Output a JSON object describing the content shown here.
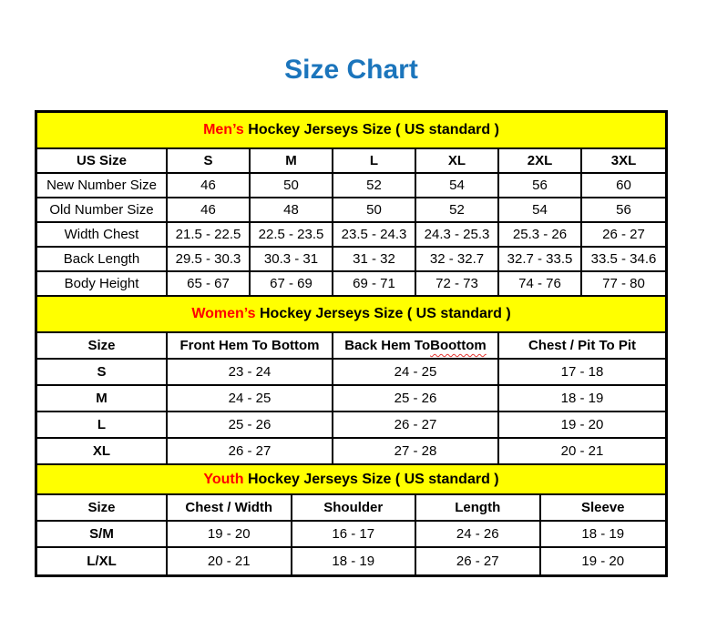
{
  "page_title": "Size Chart",
  "colors": {
    "title_blue": "#1B75BC",
    "band_yellow": "#FFFF00",
    "accent_red": "#FF0000",
    "border_black": "#000000",
    "squiggle_red": "#E53935"
  },
  "chart_data": [
    {
      "type": "table",
      "title": "Men’s Hockey Jerseys Size ( US standard )",
      "title_red_part": "Men’s",
      "title_black_part": " Hockey Jerseys Size ( US standard )",
      "columns": [
        "US Size",
        "S",
        "M",
        "L",
        "XL",
        "2XL",
        "3XL"
      ],
      "rows": [
        [
          "New Number Size",
          "46",
          "50",
          "52",
          "54",
          "56",
          "60"
        ],
        [
          "Old Number Size",
          "46",
          "48",
          "50",
          "52",
          "54",
          "56"
        ],
        [
          "Width Chest",
          "21.5 - 22.5",
          "22.5 - 23.5",
          "23.5 - 24.3",
          "24.3 - 25.3",
          "25.3 - 26",
          "26 - 27"
        ],
        [
          "Back Length",
          "29.5 - 30.3",
          "30.3 - 31",
          "31 - 32",
          "32 - 32.7",
          "32.7 - 33.5",
          "33.5 - 34.6"
        ],
        [
          "Body Height",
          "65 - 67",
          "67 - 69",
          "69 - 71",
          "72 - 73",
          "74 - 76",
          "77 - 80"
        ]
      ]
    },
    {
      "type": "table",
      "title": "Women’s Hockey Jerseys Size ( US standard )",
      "title_red_part": "Women’s",
      "title_black_part": " Hockey Jerseys Size ( US standard )",
      "columns": [
        "Size",
        "Front Hem To Bottom",
        "Back Hem To Boottom",
        "Chest / Pit To Pit"
      ],
      "typo": {
        "prefix": "Back Hem To ",
        "misspelled": "Boottom"
      },
      "rows": [
        [
          "S",
          "23 - 24",
          "24 - 25",
          "17 - 18"
        ],
        [
          "M",
          "24 - 25",
          "25 - 26",
          "18 - 19"
        ],
        [
          "L",
          "25 - 26",
          "26 - 27",
          "19 - 20"
        ],
        [
          "XL",
          "26 - 27",
          "27 - 28",
          "20 - 21"
        ]
      ]
    },
    {
      "type": "table",
      "title": "Youth Hockey Jerseys Size ( US standard )",
      "title_red_part": "Youth",
      "title_black_part": " Hockey Jerseys Size ( US standard )",
      "columns": [
        "Size",
        "Chest / Width",
        "Shoulder",
        "Length",
        "Sleeve"
      ],
      "rows": [
        [
          "S/M",
          "19 - 20",
          "16 - 17",
          "24 - 26",
          "18 - 19"
        ],
        [
          "L/XL",
          "20 - 21",
          "18 - 19",
          "26 - 27",
          "19 - 20"
        ]
      ]
    }
  ]
}
